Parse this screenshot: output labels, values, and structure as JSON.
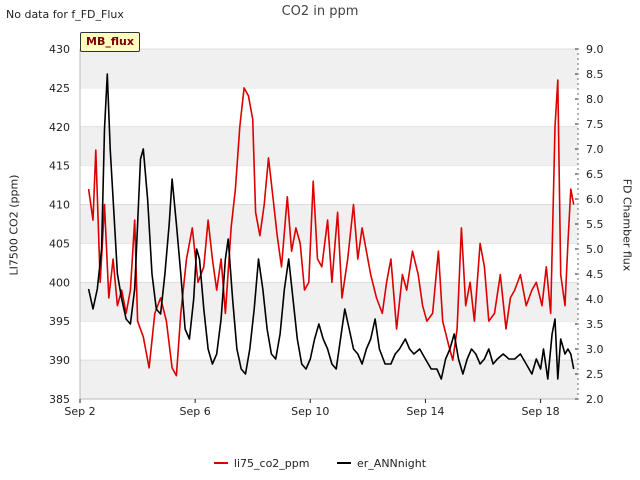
{
  "header": {
    "no_data_text": "No data for f_FD_Flux",
    "title": "CO2 in ppm",
    "badge": "MB_flux"
  },
  "chart_data": {
    "type": "line",
    "title": "CO2 in ppm",
    "ylabel": "LI7500 CO2 (ppm)",
    "y2label": "FD Chamber flux",
    "ylim": [
      385,
      430
    ],
    "y2lim": [
      2.0,
      9.0
    ],
    "yticks": [
      "385",
      "390",
      "395",
      "400",
      "405",
      "410",
      "415",
      "420",
      "425",
      "430"
    ],
    "y2ticks": [
      "2.0",
      "2.5",
      "3.0",
      "3.5",
      "4.0",
      "4.5",
      "5.0",
      "5.5",
      "6.0",
      "6.5",
      "7.0",
      "7.5",
      "8.0",
      "8.5",
      "9.0"
    ],
    "xticks": [
      {
        "day": 2,
        "label": "Sep 2"
      },
      {
        "day": 6,
        "label": "Sep 6"
      },
      {
        "day": 10,
        "label": "Sep 10"
      },
      {
        "day": 14,
        "label": "Sep 14"
      },
      {
        "day": 18,
        "label": "Sep 18"
      }
    ],
    "xlim_days": [
      2.0,
      19.3
    ],
    "grid": "horizontal bands",
    "legend_position": "bottom-center",
    "series": [
      {
        "name": "li75_co2_ppm",
        "axis": "left",
        "color": "#dd0000",
        "points": [
          [
            2.3,
            412
          ],
          [
            2.45,
            408
          ],
          [
            2.55,
            417
          ],
          [
            2.7,
            400
          ],
          [
            2.85,
            410
          ],
          [
            3.0,
            398
          ],
          [
            3.15,
            403
          ],
          [
            3.3,
            397
          ],
          [
            3.45,
            399
          ],
          [
            3.6,
            396
          ],
          [
            3.75,
            399
          ],
          [
            3.9,
            408
          ],
          [
            4.0,
            395
          ],
          [
            4.2,
            393
          ],
          [
            4.4,
            389
          ],
          [
            4.6,
            396
          ],
          [
            4.8,
            398
          ],
          [
            5.0,
            395
          ],
          [
            5.2,
            389
          ],
          [
            5.35,
            388
          ],
          [
            5.5,
            396
          ],
          [
            5.7,
            403
          ],
          [
            5.9,
            407
          ],
          [
            6.1,
            400
          ],
          [
            6.3,
            402
          ],
          [
            6.45,
            408
          ],
          [
            6.6,
            403
          ],
          [
            6.75,
            399
          ],
          [
            6.9,
            403
          ],
          [
            7.05,
            396
          ],
          [
            7.25,
            407
          ],
          [
            7.4,
            412
          ],
          [
            7.55,
            420
          ],
          [
            7.7,
            425
          ],
          [
            7.85,
            424
          ],
          [
            8.0,
            421
          ],
          [
            8.1,
            409
          ],
          [
            8.25,
            406
          ],
          [
            8.4,
            410
          ],
          [
            8.55,
            416
          ],
          [
            8.7,
            411
          ],
          [
            8.85,
            406
          ],
          [
            9.0,
            402
          ],
          [
            9.2,
            411
          ],
          [
            9.35,
            404
          ],
          [
            9.5,
            407
          ],
          [
            9.65,
            405
          ],
          [
            9.8,
            399
          ],
          [
            9.95,
            400
          ],
          [
            10.1,
            413
          ],
          [
            10.25,
            403
          ],
          [
            10.4,
            402
          ],
          [
            10.6,
            408
          ],
          [
            10.75,
            400
          ],
          [
            10.95,
            409
          ],
          [
            11.1,
            398
          ],
          [
            11.3,
            403
          ],
          [
            11.5,
            410
          ],
          [
            11.65,
            403
          ],
          [
            11.8,
            407
          ],
          [
            11.95,
            404
          ],
          [
            12.1,
            401
          ],
          [
            12.3,
            398
          ],
          [
            12.5,
            396
          ],
          [
            12.65,
            400
          ],
          [
            12.8,
            403
          ],
          [
            13.0,
            394
          ],
          [
            13.2,
            401
          ],
          [
            13.35,
            399
          ],
          [
            13.55,
            404
          ],
          [
            13.75,
            401
          ],
          [
            13.9,
            397
          ],
          [
            14.05,
            395
          ],
          [
            14.25,
            396
          ],
          [
            14.45,
            404
          ],
          [
            14.6,
            395
          ],
          [
            14.8,
            392
          ],
          [
            14.95,
            390
          ],
          [
            15.1,
            394
          ],
          [
            15.25,
            407
          ],
          [
            15.4,
            397
          ],
          [
            15.55,
            400
          ],
          [
            15.7,
            395
          ],
          [
            15.9,
            405
          ],
          [
            16.05,
            402
          ],
          [
            16.2,
            395
          ],
          [
            16.4,
            396
          ],
          [
            16.6,
            401
          ],
          [
            16.8,
            394
          ],
          [
            16.95,
            398
          ],
          [
            17.1,
            399
          ],
          [
            17.3,
            401
          ],
          [
            17.5,
            397
          ],
          [
            17.7,
            399
          ],
          [
            17.85,
            400
          ],
          [
            18.05,
            397
          ],
          [
            18.2,
            402
          ],
          [
            18.35,
            396
          ],
          [
            18.5,
            420
          ],
          [
            18.6,
            426
          ],
          [
            18.7,
            401
          ],
          [
            18.85,
            397
          ],
          [
            18.95,
            405
          ],
          [
            19.05,
            412
          ],
          [
            19.15,
            410
          ]
        ]
      },
      {
        "name": "er_ANNnight",
        "axis": "right",
        "color": "#000000",
        "points": [
          [
            2.3,
            4.2
          ],
          [
            2.45,
            3.8
          ],
          [
            2.6,
            4.2
          ],
          [
            2.75,
            5.0
          ],
          [
            2.85,
            7.4
          ],
          [
            2.95,
            8.5
          ],
          [
            3.05,
            7.0
          ],
          [
            3.15,
            6.0
          ],
          [
            3.3,
            4.5
          ],
          [
            3.45,
            4.0
          ],
          [
            3.6,
            3.6
          ],
          [
            3.75,
            3.5
          ],
          [
            3.9,
            4.2
          ],
          [
            4.0,
            5.5
          ],
          [
            4.1,
            6.8
          ],
          [
            4.2,
            7.0
          ],
          [
            4.35,
            6.0
          ],
          [
            4.5,
            4.5
          ],
          [
            4.65,
            3.8
          ],
          [
            4.8,
            3.7
          ],
          [
            4.95,
            4.5
          ],
          [
            5.1,
            5.5
          ],
          [
            5.2,
            6.4
          ],
          [
            5.35,
            5.5
          ],
          [
            5.5,
            4.5
          ],
          [
            5.65,
            3.4
          ],
          [
            5.8,
            3.2
          ],
          [
            5.95,
            4.0
          ],
          [
            6.05,
            5.0
          ],
          [
            6.15,
            4.8
          ],
          [
            6.3,
            3.8
          ],
          [
            6.45,
            3.0
          ],
          [
            6.6,
            2.7
          ],
          [
            6.75,
            2.9
          ],
          [
            6.9,
            3.6
          ],
          [
            7.05,
            4.8
          ],
          [
            7.15,
            5.2
          ],
          [
            7.3,
            4.0
          ],
          [
            7.45,
            3.0
          ],
          [
            7.6,
            2.6
          ],
          [
            7.75,
            2.5
          ],
          [
            7.9,
            3.0
          ],
          [
            8.05,
            3.8
          ],
          [
            8.2,
            4.8
          ],
          [
            8.35,
            4.2
          ],
          [
            8.5,
            3.4
          ],
          [
            8.65,
            2.9
          ],
          [
            8.8,
            2.8
          ],
          [
            8.95,
            3.3
          ],
          [
            9.1,
            4.2
          ],
          [
            9.25,
            4.8
          ],
          [
            9.4,
            4.0
          ],
          [
            9.55,
            3.2
          ],
          [
            9.7,
            2.7
          ],
          [
            9.85,
            2.6
          ],
          [
            10.0,
            2.8
          ],
          [
            10.15,
            3.2
          ],
          [
            10.3,
            3.5
          ],
          [
            10.45,
            3.2
          ],
          [
            10.6,
            3.0
          ],
          [
            10.75,
            2.7
          ],
          [
            10.9,
            2.6
          ],
          [
            11.05,
            3.2
          ],
          [
            11.2,
            3.8
          ],
          [
            11.35,
            3.4
          ],
          [
            11.5,
            3.0
          ],
          [
            11.65,
            2.9
          ],
          [
            11.8,
            2.7
          ],
          [
            11.95,
            3.0
          ],
          [
            12.1,
            3.2
          ],
          [
            12.25,
            3.6
          ],
          [
            12.4,
            3.0
          ],
          [
            12.6,
            2.7
          ],
          [
            12.8,
            2.7
          ],
          [
            12.95,
            2.9
          ],
          [
            13.1,
            3.0
          ],
          [
            13.3,
            3.2
          ],
          [
            13.45,
            3.0
          ],
          [
            13.6,
            2.9
          ],
          [
            13.8,
            3.0
          ],
          [
            14.0,
            2.8
          ],
          [
            14.2,
            2.6
          ],
          [
            14.4,
            2.6
          ],
          [
            14.55,
            2.4
          ],
          [
            14.7,
            2.8
          ],
          [
            14.85,
            3.0
          ],
          [
            15.0,
            3.3
          ],
          [
            15.15,
            2.8
          ],
          [
            15.3,
            2.5
          ],
          [
            15.45,
            2.8
          ],
          [
            15.6,
            3.0
          ],
          [
            15.75,
            2.9
          ],
          [
            15.9,
            2.7
          ],
          [
            16.05,
            2.8
          ],
          [
            16.2,
            3.0
          ],
          [
            16.35,
            2.7
          ],
          [
            16.5,
            2.8
          ],
          [
            16.7,
            2.9
          ],
          [
            16.9,
            2.8
          ],
          [
            17.1,
            2.8
          ],
          [
            17.3,
            2.9
          ],
          [
            17.5,
            2.7
          ],
          [
            17.7,
            2.5
          ],
          [
            17.85,
            2.8
          ],
          [
            18.0,
            2.6
          ],
          [
            18.1,
            3.0
          ],
          [
            18.25,
            2.4
          ],
          [
            18.4,
            3.3
          ],
          [
            18.5,
            3.6
          ],
          [
            18.6,
            2.4
          ],
          [
            18.7,
            3.2
          ],
          [
            18.85,
            2.9
          ],
          [
            18.95,
            3.0
          ],
          [
            19.05,
            2.9
          ],
          [
            19.15,
            2.6
          ]
        ]
      }
    ]
  }
}
